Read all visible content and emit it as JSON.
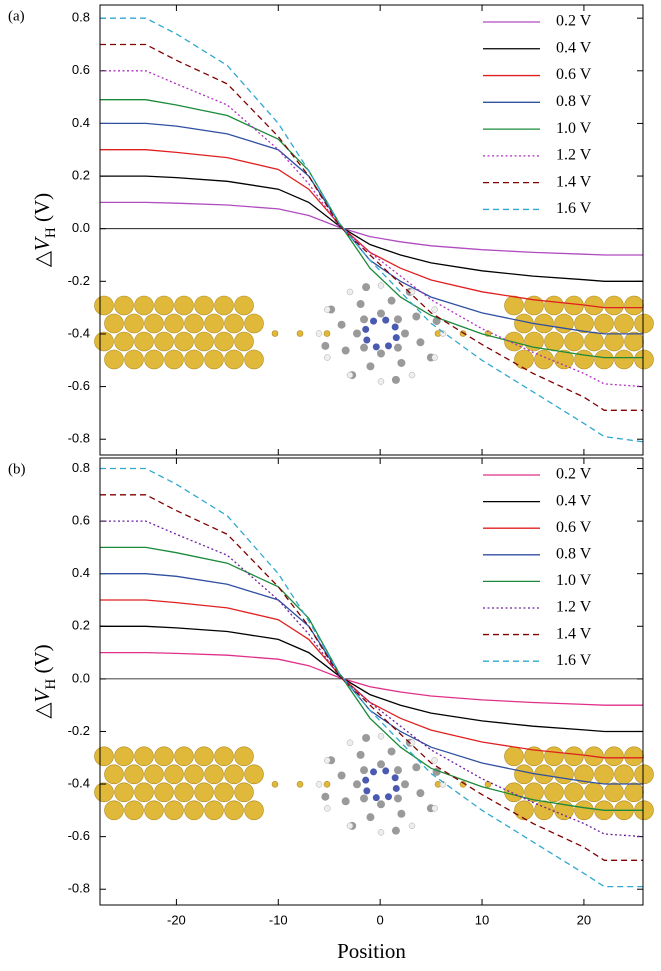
{
  "chart_data": [
    {
      "type": "line",
      "panel_label": "(a)",
      "ylabel": "△VH (V)",
      "xlim": [
        -27.5,
        25.8
      ],
      "ylim": [
        -0.86,
        0.85
      ],
      "yticks": [
        0.8,
        0.6,
        0.4,
        0.2,
        {
          "value": 0,
          "label": "0.0"
        },
        -0.2,
        -0.4,
        -0.6,
        -0.8
      ],
      "hline": 0,
      "legend": "upper right",
      "x": [
        -27.5,
        -23,
        -20,
        -15,
        -10,
        -7,
        -4,
        -1,
        2,
        5,
        10,
        15,
        20,
        22,
        25.8
      ],
      "series": [
        {
          "name": "0.2 V",
          "color": "#b04cc0",
          "linestyle": "solid",
          "values": [
            0.1,
            0.1,
            0.097,
            0.09,
            0.075,
            0.05,
            0.005,
            -0.03,
            -0.05,
            -0.065,
            -0.08,
            -0.09,
            -0.097,
            -0.1,
            -0.1
          ]
        },
        {
          "name": "0.4 V",
          "color": "#000000",
          "linestyle": "solid",
          "values": [
            0.2,
            0.2,
            0.194,
            0.18,
            0.15,
            0.1,
            0.01,
            -0.06,
            -0.1,
            -0.13,
            -0.16,
            -0.18,
            -0.194,
            -0.2,
            -0.2
          ]
        },
        {
          "name": "0.6 V",
          "color": "#e02020",
          "linestyle": "solid",
          "values": [
            0.3,
            0.3,
            0.29,
            0.27,
            0.225,
            0.15,
            0.015,
            -0.09,
            -0.15,
            -0.195,
            -0.24,
            -0.27,
            -0.29,
            -0.3,
            -0.3
          ]
        },
        {
          "name": "0.8 V",
          "color": "#3050a0",
          "linestyle": "solid",
          "values": [
            0.4,
            0.4,
            0.39,
            0.36,
            0.3,
            0.2,
            0.02,
            -0.12,
            -0.2,
            -0.26,
            -0.32,
            -0.36,
            -0.39,
            -0.4,
            -0.4
          ]
        },
        {
          "name": "1.0 V",
          "color": "#1a8a3a",
          "linestyle": "solid",
          "values": [
            0.49,
            0.49,
            0.47,
            0.43,
            0.34,
            0.22,
            0.02,
            -0.15,
            -0.26,
            -0.33,
            -0.4,
            -0.45,
            -0.48,
            -0.49,
            -0.49
          ]
        },
        {
          "name": "1.2 V",
          "color": "#b030c0",
          "linestyle": "dotted",
          "values": [
            0.6,
            0.6,
            0.55,
            0.47,
            0.3,
            0.17,
            0.01,
            -0.09,
            -0.18,
            -0.27,
            -0.38,
            -0.47,
            -0.55,
            -0.59,
            -0.6
          ]
        },
        {
          "name": "1.4 V",
          "color": "#800000",
          "linestyle": "dashed",
          "values": [
            0.7,
            0.7,
            0.64,
            0.55,
            0.35,
            0.2,
            0.01,
            -0.1,
            -0.21,
            -0.32,
            -0.44,
            -0.55,
            -0.64,
            -0.69,
            -0.69
          ]
        },
        {
          "name": "1.6 V",
          "color": "#30a8d0",
          "linestyle": "dashed",
          "values": [
            0.8,
            0.8,
            0.74,
            0.62,
            0.4,
            0.22,
            0.02,
            -0.12,
            -0.24,
            -0.36,
            -0.5,
            -0.62,
            -0.74,
            -0.79,
            -0.81
          ]
        }
      ]
    },
    {
      "type": "line",
      "panel_label": "(b)",
      "ylabel": "△VH (V)",
      "xlabel": "Position",
      "xlim": [
        -27.5,
        25.8
      ],
      "ylim": [
        -0.86,
        0.84
      ],
      "xticks": [
        -20,
        -10,
        0,
        10,
        20
      ],
      "yticks": [
        0.8,
        0.6,
        0.4,
        0.2,
        {
          "value": 0,
          "label": "0.0"
        },
        -0.2,
        -0.4,
        -0.6,
        -0.8
      ],
      "hline": 0,
      "legend": "upper right",
      "x": [
        -27.5,
        -23,
        -20,
        -15,
        -10,
        -7,
        -4,
        -1,
        2,
        5,
        10,
        15,
        20,
        22,
        25.8
      ],
      "series": [
        {
          "name": "0.2 V",
          "color": "#e0308a",
          "linestyle": "solid",
          "values": [
            0.1,
            0.1,
            0.097,
            0.09,
            0.075,
            0.05,
            0.005,
            -0.03,
            -0.05,
            -0.065,
            -0.08,
            -0.09,
            -0.097,
            -0.1,
            -0.1
          ]
        },
        {
          "name": "0.4 V",
          "color": "#000000",
          "linestyle": "solid",
          "values": [
            0.2,
            0.2,
            0.194,
            0.18,
            0.15,
            0.1,
            0.01,
            -0.06,
            -0.1,
            -0.13,
            -0.16,
            -0.18,
            -0.194,
            -0.2,
            -0.2
          ]
        },
        {
          "name": "0.6 V",
          "color": "#e02020",
          "linestyle": "solid",
          "values": [
            0.3,
            0.3,
            0.29,
            0.27,
            0.225,
            0.15,
            0.015,
            -0.09,
            -0.15,
            -0.195,
            -0.24,
            -0.27,
            -0.29,
            -0.3,
            -0.3
          ]
        },
        {
          "name": "0.8 V",
          "color": "#3050a0",
          "linestyle": "solid",
          "values": [
            0.4,
            0.4,
            0.39,
            0.36,
            0.3,
            0.2,
            0.02,
            -0.12,
            -0.2,
            -0.26,
            -0.32,
            -0.36,
            -0.39,
            -0.4,
            -0.4
          ]
        },
        {
          "name": "1.0 V",
          "color": "#1a8a3a",
          "linestyle": "solid",
          "values": [
            0.5,
            0.5,
            0.48,
            0.44,
            0.35,
            0.23,
            0.02,
            -0.15,
            -0.26,
            -0.34,
            -0.41,
            -0.46,
            -0.49,
            -0.5,
            -0.5
          ]
        },
        {
          "name": "1.2 V",
          "color": "#7020a0",
          "linestyle": "dotted",
          "values": [
            0.6,
            0.6,
            0.55,
            0.47,
            0.3,
            0.17,
            0.01,
            -0.09,
            -0.18,
            -0.27,
            -0.38,
            -0.47,
            -0.55,
            -0.59,
            -0.6
          ]
        },
        {
          "name": "1.4 V",
          "color": "#800000",
          "linestyle": "dashed",
          "values": [
            0.7,
            0.7,
            0.64,
            0.55,
            0.35,
            0.2,
            0.01,
            -0.1,
            -0.21,
            -0.32,
            -0.44,
            -0.55,
            -0.64,
            -0.69,
            -0.69
          ]
        },
        {
          "name": "1.6 V",
          "color": "#30a8d0",
          "linestyle": "dashed",
          "values": [
            0.8,
            0.8,
            0.74,
            0.62,
            0.4,
            0.22,
            0.02,
            -0.12,
            -0.24,
            -0.36,
            -0.5,
            -0.62,
            -0.74,
            -0.79,
            -0.79
          ]
        }
      ]
    }
  ]
}
